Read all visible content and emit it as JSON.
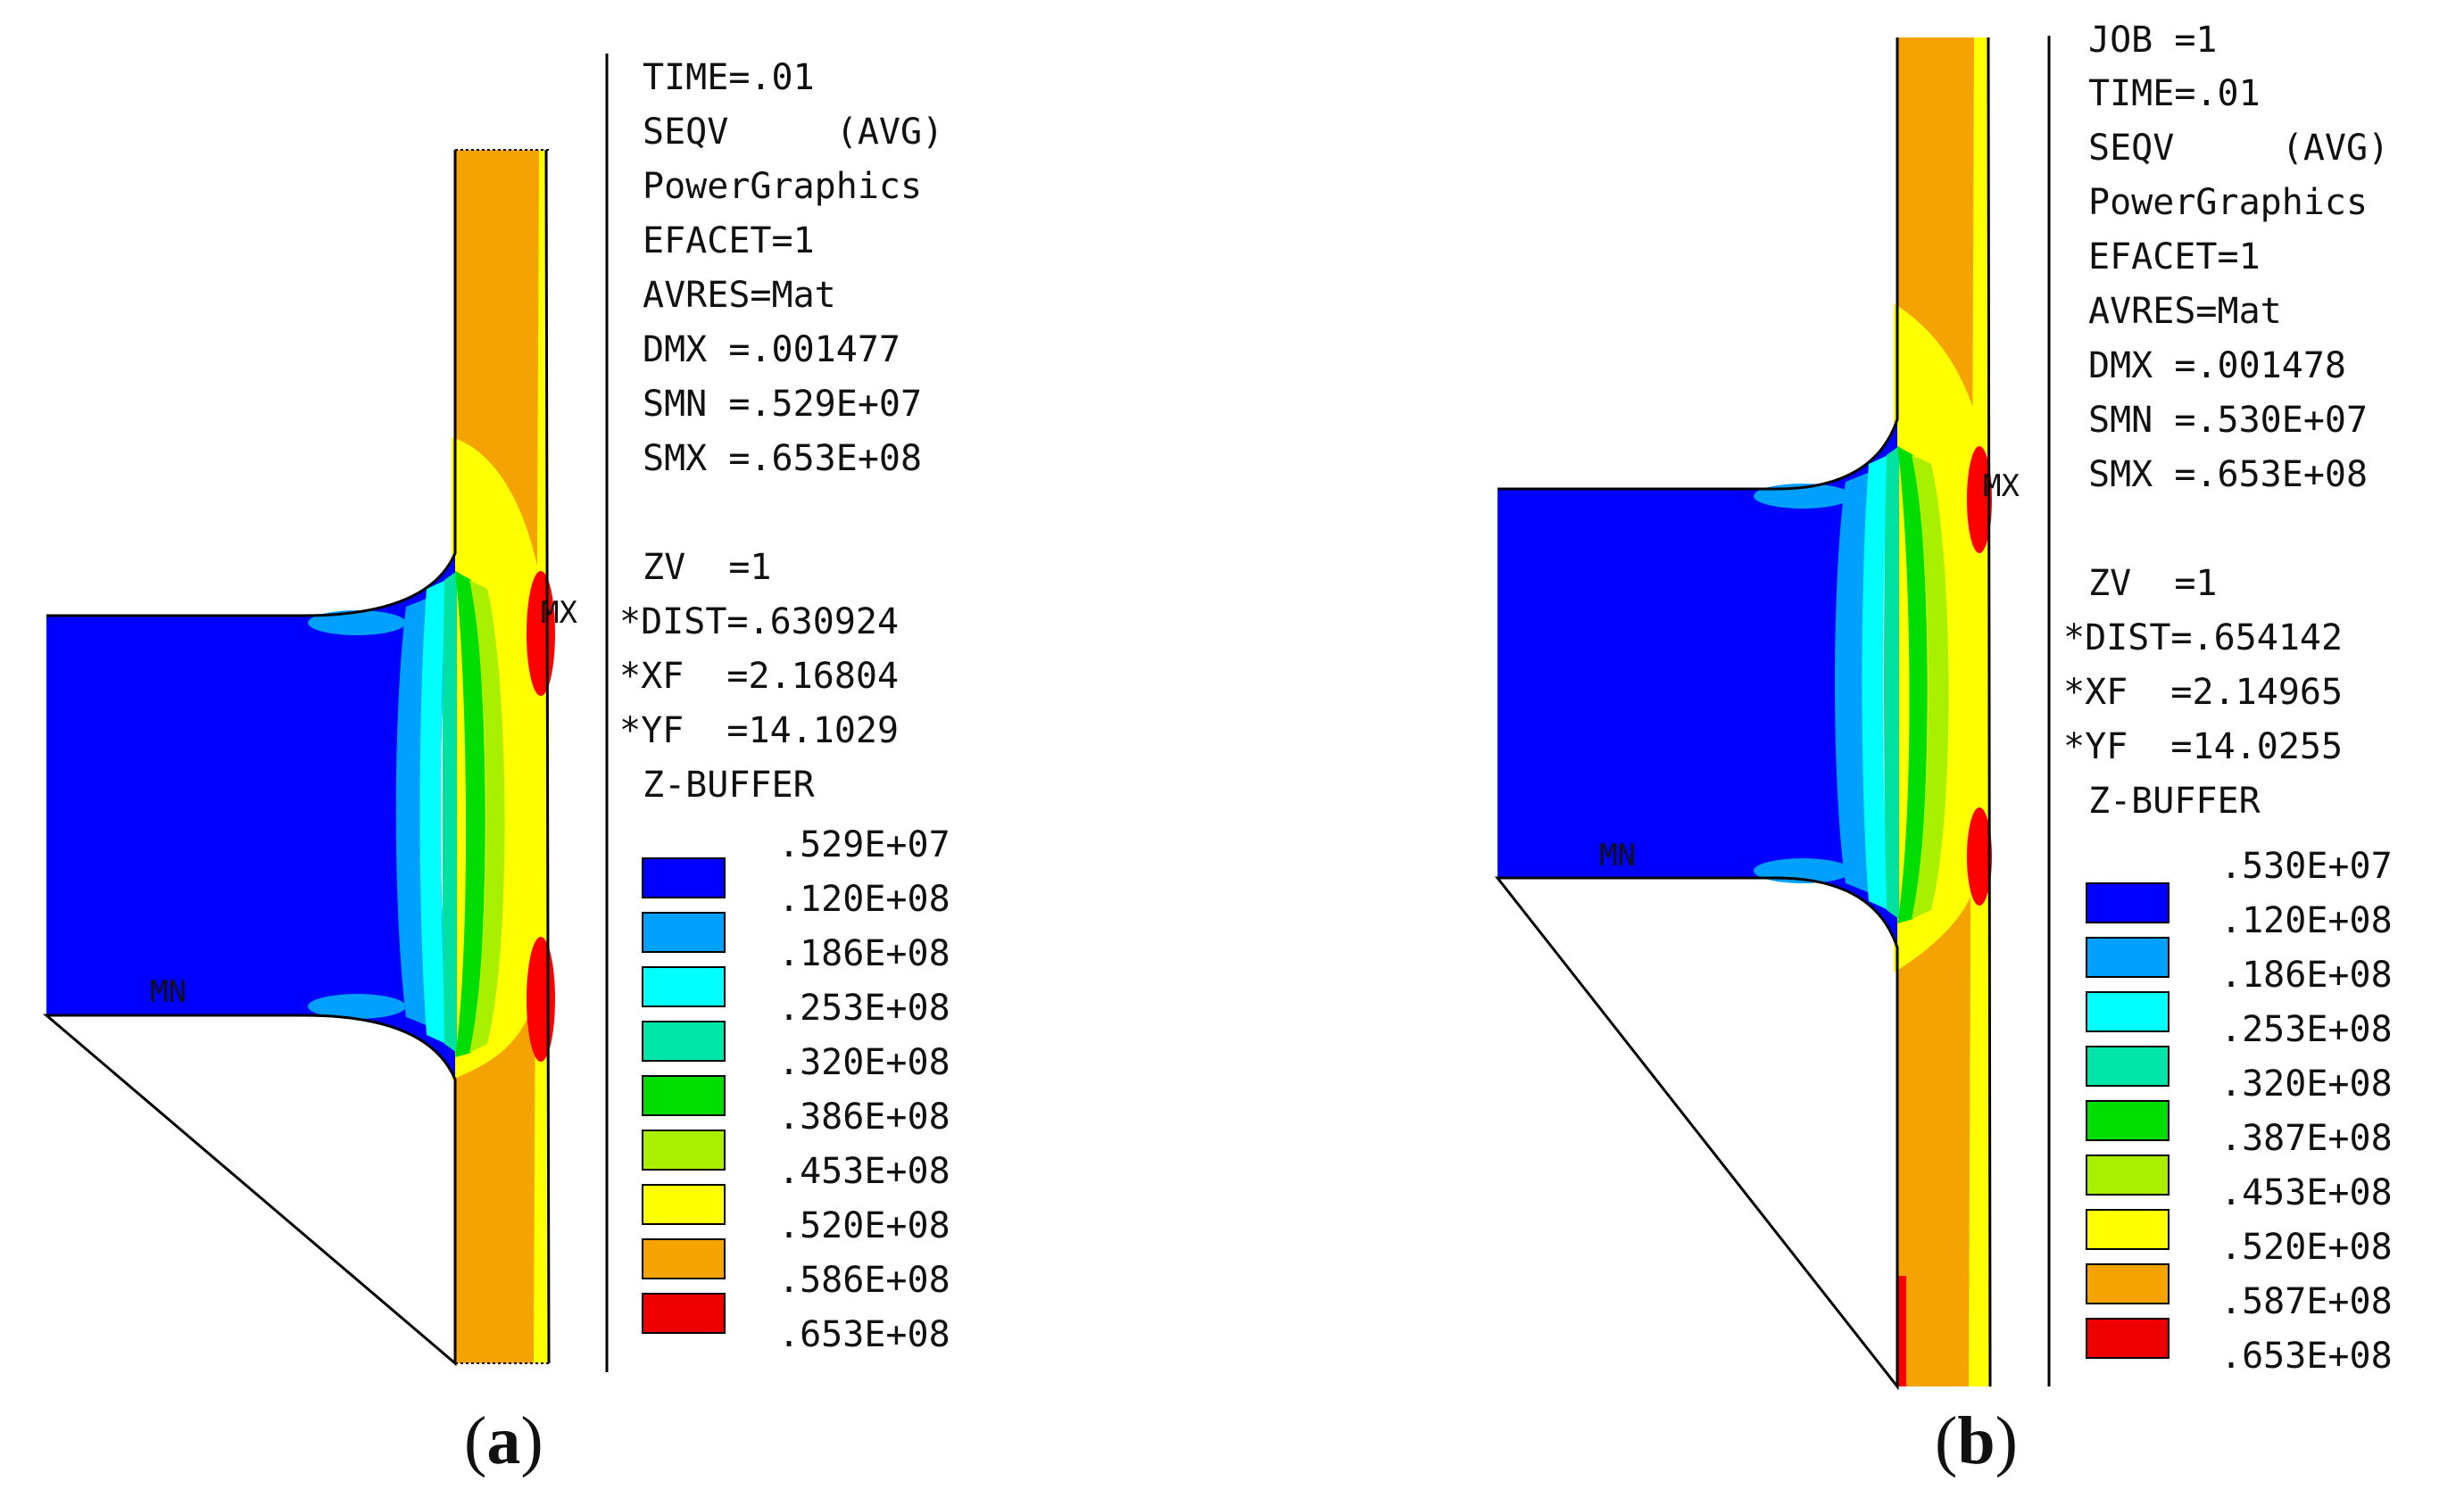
{
  "panels": [
    {
      "id": "a",
      "caption": {
        "open": "(",
        "letter": "a",
        "close": ")"
      },
      "header_top": "",
      "info": [
        "TIME=.01",
        "SEQV     (AVG)",
        "PowerGraphics",
        "EFACET=1",
        "AVRES=Mat",
        "DMX =.001477",
        "SMN =.529E+07",
        "SMX =.653E+08",
        "",
        "ZV  =1",
        "*DIST=.630924",
        "*XF  =2.16804",
        "*YF  =14.1029",
        "Z-BUFFER"
      ],
      "min_label": "MN",
      "max_label": "MX",
      "legend_values": [
        ".529E+07",
        ".120E+08",
        ".186E+08",
        ".253E+08",
        ".320E+08",
        ".386E+08",
        ".453E+08",
        ".520E+08",
        ".586E+08",
        ".653E+08"
      ]
    },
    {
      "id": "b",
      "caption": {
        "open": "(",
        "letter": "b",
        "close": ")"
      },
      "header_top": "JOB =1",
      "info": [
        "TIME=.01",
        "SEQV     (AVG)",
        "PowerGraphics",
        "EFACET=1",
        "AVRES=Mat",
        "DMX =.001478",
        "SMN =.530E+07",
        "SMX =.653E+08",
        "",
        "ZV  =1",
        "*DIST=.654142",
        "*XF  =2.14965",
        "*YF  =14.0255",
        "Z-BUFFER"
      ],
      "min_label": "MN",
      "max_label": "MX",
      "legend_values": [
        ".530E+07",
        ".120E+08",
        ".186E+08",
        ".253E+08",
        ".320E+08",
        ".387E+08",
        ".453E+08",
        ".520E+08",
        ".587E+08",
        ".653E+08"
      ]
    }
  ],
  "legend_colors": [
    "#0000ff",
    "#00a0ff",
    "#00ffff",
    "#00e0a0",
    "#00dd00",
    "#a8f000",
    "#ffff00",
    "#f5a300",
    "#f5a300",
    "#ff0000"
  ],
  "legend_swatch_colors": [
    "#0000ff",
    "#00a0ff",
    "#00ffff",
    "#00e6a8",
    "#00dd00",
    "#a8f000",
    "#ffff00",
    "#f5a300",
    "#ee0000"
  ]
}
